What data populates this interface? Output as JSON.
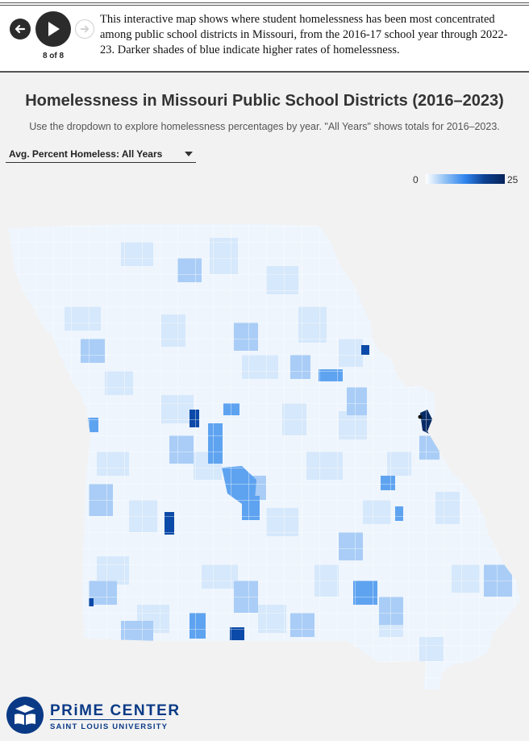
{
  "nav": {
    "counter": "8 of 8",
    "prev_icon": "arrow-left-icon",
    "play_icon": "play-icon",
    "next_icon": "arrow-right-icon"
  },
  "intro_text": "This interactive map shows where student homelessness has been most concentrated among public school districts in Missouri, from the 2016-17 school year through 2022-23. Darker shades of blue indicate higher rates of homelessness.",
  "title": "Homelessness in Missouri Public School Districts (2016–2023)",
  "subtitle": "Use the dropdown to explore homelessness percentages by year. \"All Years\" shows totals for 2016–2023.",
  "dropdown": {
    "selected": "Avg. Percent Homeless: All Years"
  },
  "legend": {
    "min": "0",
    "max": "25",
    "colors": [
      "#ffffff",
      "#8fc0f4",
      "#2f84ee",
      "#0b3f8f",
      "#07245a"
    ]
  },
  "logo": {
    "title": "PRiME CENTER",
    "subtitle": "SAINT LOUIS UNIVERSITY",
    "color": "#0a3a86"
  },
  "colors": {
    "map_outline": "#ffffff",
    "background": "#f2f2f2"
  }
}
